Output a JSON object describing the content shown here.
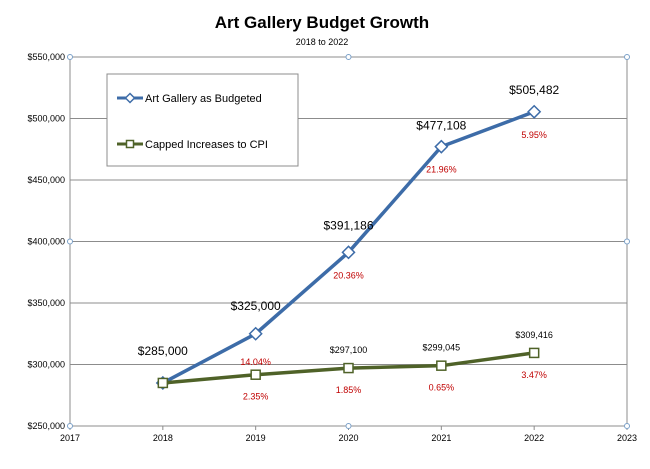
{
  "chart_data": {
    "type": "line",
    "title": "Art Gallery Budget Growth",
    "subtitle": "2018 to 2022",
    "xlabel": "",
    "ylabel": "",
    "xlim": [
      2017,
      2023
    ],
    "ylim": [
      250000,
      550000
    ],
    "x_ticks": [
      "2017",
      "2018",
      "2019",
      "2020",
      "2021",
      "2022",
      "2023"
    ],
    "y_ticks": [
      "$250,000",
      "$300,000",
      "$350,000",
      "$400,000",
      "$450,000",
      "$500,000",
      "$550,000"
    ],
    "grid": "horizontal",
    "legend_position": "top-left",
    "series": [
      {
        "name": "Art Gallery as Budgeted",
        "color": "#3d6ca8",
        "marker": "diamond",
        "x": [
          2018,
          2019,
          2020,
          2021,
          2022
        ],
        "values": [
          285000,
          325000,
          391186,
          477108,
          505482
        ],
        "value_labels": [
          "$285,000",
          "$325,000",
          "$391,186",
          "$477,108",
          "$505,482"
        ],
        "pct_labels": [
          "",
          "14.04%",
          "20.36%",
          "21.96%",
          "5.95%"
        ]
      },
      {
        "name": "Capped Increases to CPI",
        "color": "#4f6228",
        "marker": "square",
        "x": [
          2018,
          2019,
          2020,
          2021,
          2022
        ],
        "values": [
          285000,
          291700,
          297100,
          299045,
          309416
        ],
        "value_labels": [
          "",
          "",
          "$297,100",
          "$299,045",
          "$309,416"
        ],
        "pct_labels": [
          "",
          "2.35%",
          "1.85%",
          "0.65%",
          "3.47%"
        ]
      }
    ],
    "pct_label_color": "#c00000"
  }
}
